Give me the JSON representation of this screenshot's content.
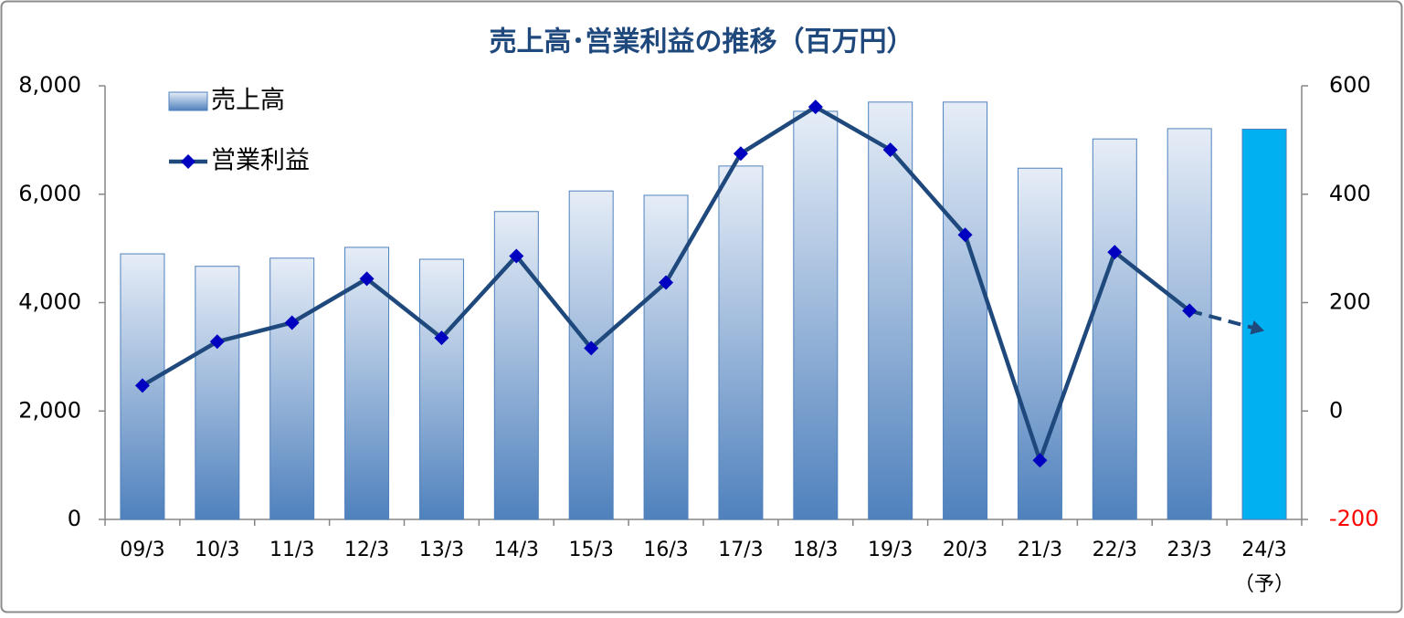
{
  "chart_data": {
    "type": "bar-line",
    "title": "売上高･営業利益の推移（百万円）",
    "categories": [
      "09/3",
      "10/3",
      "11/3",
      "12/3",
      "13/3",
      "14/3",
      "15/3",
      "16/3",
      "17/3",
      "18/3",
      "19/3",
      "20/3",
      "21/3",
      "22/3",
      "23/3",
      "24/3"
    ],
    "forecast_label": "（予）",
    "forecast_index": 15,
    "series": [
      {
        "name": "売上高",
        "type": "bar",
        "color": "#4f81bd",
        "highlight_color": "#00b0f0",
        "values": [
          4900,
          4670,
          4820,
          5020,
          4800,
          5680,
          6060,
          5980,
          6520,
          7530,
          7700,
          7700,
          6480,
          7020,
          7210,
          7200
        ]
      },
      {
        "name": "営業利益",
        "type": "line",
        "axis": "y2",
        "color": "#1f497d",
        "marker_color": "#0000c0",
        "dashed_last_segment": true,
        "values": [
          47,
          128,
          163,
          244,
          135,
          286,
          116,
          237,
          475,
          561,
          482,
          325,
          -91,
          293,
          185,
          148
        ]
      }
    ],
    "ylim": [
      0,
      8000
    ],
    "yticks": [
      0,
      {
        "value": 2000,
        "label": "2,000"
      },
      {
        "value": 4000,
        "label": "4,000"
      },
      {
        "value": 6000,
        "label": "6,000"
      },
      {
        "value": 8000,
        "label": "8,000"
      }
    ],
    "y2lim": [
      -200,
      600
    ],
    "y2ticks": [
      -200,
      0,
      200,
      400,
      600
    ],
    "y2_negative_tick_color": "#ff0000",
    "grid": false
  }
}
